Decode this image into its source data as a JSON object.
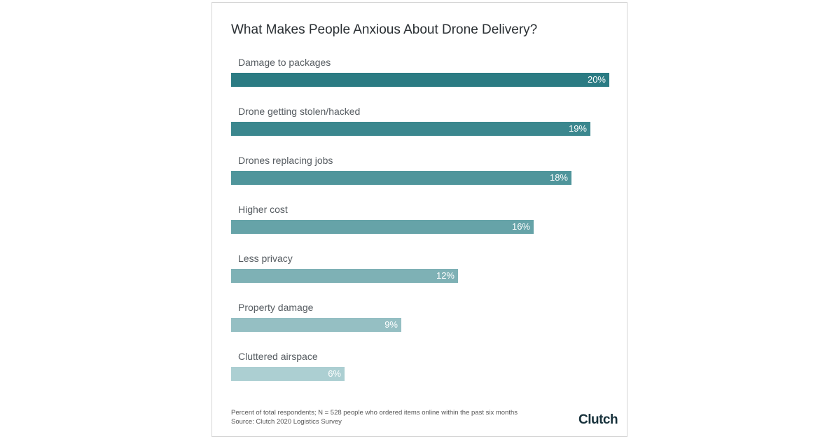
{
  "chart_data": {
    "type": "bar",
    "orientation": "horizontal",
    "title": "What Makes People Anxious About Drone Delivery?",
    "categories": [
      "Damage to packages",
      "Drone getting stolen/hacked",
      "Drones replacing jobs",
      "Higher cost",
      "Less privacy",
      "Property damage",
      "Cluttered airspace"
    ],
    "values": [
      20,
      19,
      18,
      16,
      12,
      9,
      6
    ],
    "value_labels": [
      "20%",
      "19%",
      "18%",
      "16%",
      "12%",
      "9%",
      "6%"
    ],
    "colors": [
      "#2b7b83",
      "#3b878e",
      "#4f959b",
      "#66a3a8",
      "#7eb1b5",
      "#95bfc3",
      "#accfd2"
    ],
    "xlim": [
      0,
      20
    ],
    "grid": false,
    "footnote": "Percent of total respondents; N = 528 people who ordered items online within the past six months",
    "source": "Source: Clutch 2020 Logistics Survey"
  },
  "logo": "Clutch"
}
